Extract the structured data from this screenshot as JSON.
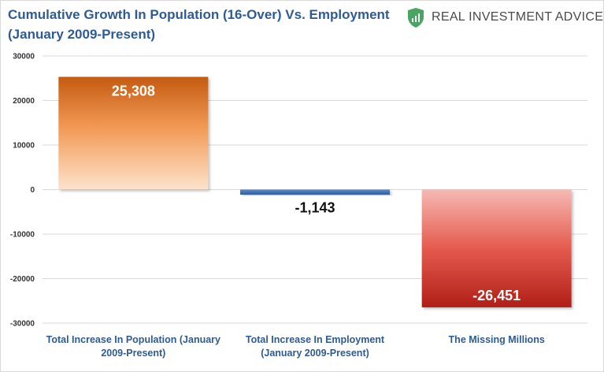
{
  "header": {
    "title_line1": "Cumulative Growth In Population (16-Over) Vs. Employment",
    "title_line2": "(January 2009-Present)",
    "brand_name": "REAL INVESTMENT ADVICE",
    "brand_icon": "shield-chart-icon",
    "brand_color": "#4aa564"
  },
  "chart_data": {
    "type": "bar",
    "title": "Cumulative Growth In Population (16-Over) Vs. Employment (January 2009-Present)",
    "categories": [
      [
        "Total Increase In Population (January",
        "2009-Present)"
      ],
      [
        "Total Increase In Employment",
        "(January 2009-Present)"
      ],
      [
        "The Missing Millions"
      ]
    ],
    "values": [
      25308,
      -1143,
      -26451
    ],
    "value_labels": [
      "25,308",
      "-1,143",
      "-26,451"
    ],
    "ylim": [
      -30000,
      30000
    ],
    "yticks": [
      30000,
      20000,
      10000,
      0,
      -10000,
      -20000,
      -30000
    ],
    "ytick_labels": [
      "30000",
      "20000",
      "10000",
      "0",
      "-10000",
      "-20000",
      "-30000"
    ],
    "grid": true,
    "legend": "none",
    "colors": [
      "#c55a11",
      "#2e5b94",
      "#c0271f"
    ]
  }
}
